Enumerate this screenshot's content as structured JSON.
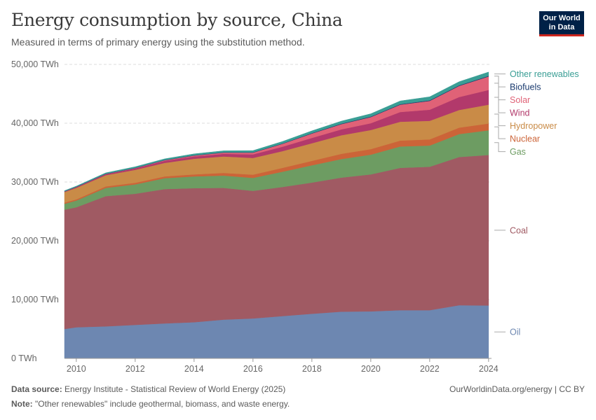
{
  "header": {
    "title": "Energy consumption by source, China",
    "subtitle": "Measured in terms of primary energy using the substitution method.",
    "logo_line1": "Our World",
    "logo_line2": "in Data"
  },
  "footer": {
    "source_label": "Data source:",
    "source_text": "Energy Institute - Statistical Review of World Energy (2025)",
    "note_label": "Note:",
    "note_text": "\"Other renewables\" include geothermal, biomass, and waste energy.",
    "credit": "OurWorldinData.org/energy | CC BY"
  },
  "chart_data": {
    "type": "area",
    "stacked": true,
    "x": [
      2009,
      2010,
      2011,
      2012,
      2013,
      2014,
      2015,
      2016,
      2017,
      2018,
      2019,
      2020,
      2021,
      2022,
      2023,
      2024
    ],
    "xticks": [
      2010,
      2012,
      2014,
      2016,
      2018,
      2020,
      2022,
      2024
    ],
    "yticks": [
      0,
      10000,
      20000,
      30000,
      40000,
      50000
    ],
    "ytick_labels": [
      "0 TWh",
      "10,000 TWh",
      "20,000 TWh",
      "30,000 TWh",
      "40,000 TWh",
      "50,000 TWh"
    ],
    "ylim": [
      0,
      50000
    ],
    "xlim": [
      2009.6,
      2024.1
    ],
    "grid": true,
    "legend": "right",
    "series": [
      {
        "name": "Oil",
        "color": "#6d87b1",
        "values": [
          5000,
          5300,
          5450,
          5700,
          5950,
          6150,
          6600,
          6800,
          7200,
          7600,
          7950,
          8000,
          8200,
          8200,
          9050,
          9000
        ]
      },
      {
        "name": "Coal",
        "color": "#a05a63",
        "values": [
          20300,
          20400,
          22150,
          22300,
          22850,
          22800,
          22400,
          21700,
          21950,
          22300,
          22800,
          23300,
          24200,
          24400,
          25200,
          25600
        ]
      },
      {
        "name": "Gas",
        "color": "#6d9c62",
        "values": [
          1000,
          1150,
          1400,
          1600,
          1850,
          2000,
          2100,
          2200,
          2600,
          2950,
          3150,
          3350,
          3650,
          3600,
          3900,
          4200
        ]
      },
      {
        "name": "Nuclear",
        "color": "#cc6438",
        "values": [
          200,
          200,
          250,
          270,
          300,
          350,
          450,
          550,
          650,
          750,
          900,
          950,
          1000,
          1050,
          1100,
          1150
        ]
      },
      {
        "name": "Hydropower",
        "color": "#c98b47",
        "values": [
          1800,
          1950,
          1900,
          2200,
          2300,
          2650,
          2800,
          2850,
          2850,
          3000,
          3150,
          3250,
          3200,
          3150,
          3000,
          3200
        ]
      },
      {
        "name": "Wind",
        "color": "#b2396b",
        "values": [
          100,
          150,
          200,
          250,
          350,
          400,
          450,
          600,
          750,
          900,
          1000,
          1150,
          1650,
          1900,
          2200,
          2500
        ]
      },
      {
        "name": "Solar",
        "color": "#e06277",
        "values": [
          0,
          0,
          20,
          50,
          100,
          150,
          200,
          300,
          500,
          750,
          900,
          1050,
          1250,
          1500,
          1900,
          2300
        ]
      },
      {
        "name": "Biofuels",
        "color": "#1a3a6e",
        "values": [
          20,
          30,
          35,
          40,
          45,
          50,
          55,
          60,
          65,
          70,
          75,
          80,
          85,
          90,
          95,
          100
        ]
      },
      {
        "name": "Other renewables",
        "color": "#3a9e95",
        "values": [
          100,
          120,
          150,
          180,
          200,
          230,
          260,
          280,
          330,
          380,
          430,
          480,
          550,
          600,
          620,
          650
        ]
      }
    ]
  }
}
